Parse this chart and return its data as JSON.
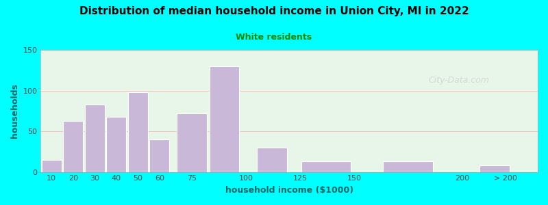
{
  "title": "Distribution of median household income in Union City, MI in 2022",
  "subtitle": "White residents",
  "xlabel": "household income ($1000)",
  "ylabel": "households",
  "bg_outer": "#00FFFF",
  "bg_inner_left": "#e8f5e9",
  "bg_inner_right": "#ffffff",
  "bar_color": "#C9B8D8",
  "bar_edgecolor": "#ffffff",
  "title_color": "#000000",
  "subtitle_color": "#008800",
  "axis_label_color": "#006666",
  "tick_label_color": "#444444",
  "categories": [
    "10",
    "20",
    "30",
    "40",
    "50",
    "60",
    "75",
    "100",
    "125",
    "150",
    "200",
    "> 200"
  ],
  "values": [
    15,
    63,
    83,
    68,
    98,
    40,
    72,
    130,
    30,
    13,
    13,
    8
  ],
  "bar_positions": [
    10,
    20,
    30,
    40,
    50,
    60,
    75,
    90,
    112,
    137,
    175,
    215
  ],
  "bar_widths": [
    10,
    10,
    10,
    10,
    10,
    10,
    15,
    15,
    15,
    25,
    25,
    15
  ],
  "ylim": [
    0,
    150
  ],
  "yticks": [
    0,
    50,
    100,
    150
  ],
  "watermark": "City-Data.com"
}
